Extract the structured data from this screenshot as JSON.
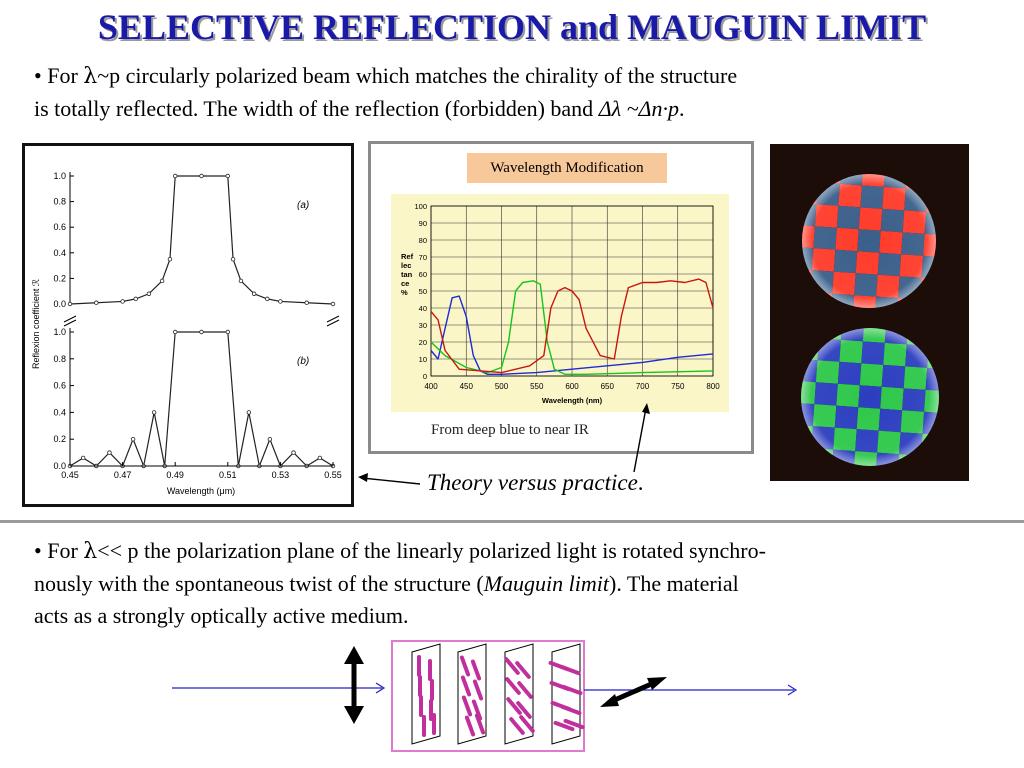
{
  "title": "SELECTIVE REFLECTION and MAUGUIN LIMIT",
  "bullet1": {
    "bullet": "•",
    "text_a": "For ",
    "lambda": "λ",
    "text_b": "~p circularly polarized beam which matches the chirality of the structure",
    "line2_a": "is totally reflected. The width of the reflection (forbidden) band ",
    "formula": "Δλ ~Δn·p",
    "line2_end": "."
  },
  "theory_plot": {
    "ylabel": "Reflexion coefficient ℛ",
    "xlabel": "Wavelength (μm)",
    "panel_a_label": "(a)",
    "panel_b_label": "(b)",
    "x_ticks": [
      "0.45",
      "0.47",
      "0.49",
      "0.51",
      "0.53",
      "0.55"
    ],
    "y_ticks_top": [
      "1.0",
      "0.8",
      "0.6",
      "0.4",
      "0.2",
      "0.0"
    ],
    "y_ticks_bottom": [
      "1.0",
      "0.8",
      "0.6",
      "0.4",
      "0.2",
      "0.0"
    ]
  },
  "practice_plot": {
    "banner": "Wavelength Modification",
    "ylabel_lines": [
      "Ref",
      "lec",
      "tan",
      "ce",
      "%"
    ],
    "xlabel": "Wavelength (nm)",
    "x_ticks": [
      "400",
      "450",
      "500",
      "550",
      "600",
      "650",
      "700",
      "750",
      "800"
    ],
    "y_ticks": [
      "100",
      "90",
      "80",
      "70",
      "60",
      "50",
      "40",
      "30",
      "20",
      "10",
      "0"
    ],
    "footer": "From deep blue to near IR"
  },
  "chart_data": [
    {
      "type": "line",
      "panel": "(a)",
      "xlabel": "Wavelength (μm)",
      "ylabel": "Reflexion coefficient ℛ",
      "xlim": [
        0.45,
        0.55
      ],
      "ylim": [
        0,
        1.0
      ],
      "x": [
        0.45,
        0.46,
        0.47,
        0.475,
        0.48,
        0.485,
        0.488,
        0.49,
        0.5,
        0.51,
        0.512,
        0.515,
        0.52,
        0.525,
        0.53,
        0.54,
        0.55
      ],
      "y": [
        0.0,
        0.01,
        0.02,
        0.04,
        0.08,
        0.18,
        0.35,
        1.0,
        1.0,
        1.0,
        0.35,
        0.18,
        0.08,
        0.04,
        0.02,
        0.01,
        0.0
      ]
    },
    {
      "type": "line",
      "panel": "(b)",
      "xlabel": "Wavelength (μm)",
      "ylabel": "Reflexion coefficient ℛ",
      "xlim": [
        0.45,
        0.55
      ],
      "ylim": [
        0,
        1.0
      ],
      "x": [
        0.45,
        0.455,
        0.46,
        0.465,
        0.47,
        0.474,
        0.478,
        0.482,
        0.486,
        0.49,
        0.5,
        0.51,
        0.514,
        0.518,
        0.522,
        0.526,
        0.53,
        0.535,
        0.54,
        0.545,
        0.55
      ],
      "y": [
        0.0,
        0.06,
        0.0,
        0.1,
        0.0,
        0.2,
        0.0,
        0.4,
        0.0,
        1.0,
        1.0,
        1.0,
        0.0,
        0.4,
        0.0,
        0.2,
        0.0,
        0.1,
        0.0,
        0.06,
        0.0
      ]
    },
    {
      "type": "line",
      "title": "Wavelength Modification",
      "xlabel": "Wavelength (nm)",
      "ylabel": "Ref lec tan ce %",
      "xlim": [
        400,
        800
      ],
      "ylim": [
        0,
        100
      ],
      "grid": true,
      "series": [
        {
          "color": "#1f2bd6",
          "x": [
            400,
            410,
            420,
            430,
            440,
            450,
            460,
            470,
            480,
            500,
            550,
            600,
            650,
            700,
            750,
            800
          ],
          "y": [
            15,
            10,
            28,
            46,
            47,
            35,
            12,
            3,
            1,
            1,
            2,
            4,
            6,
            8,
            11,
            13
          ]
        },
        {
          "color": "#16c41a",
          "x": [
            400,
            420,
            450,
            480,
            500,
            510,
            520,
            530,
            545,
            555,
            565,
            575,
            590,
            620,
            700,
            800
          ],
          "y": [
            20,
            12,
            5,
            2,
            5,
            20,
            50,
            55,
            56,
            54,
            20,
            4,
            1,
            1,
            2,
            3
          ]
        },
        {
          "color": "#c8160f",
          "x": [
            400,
            410,
            420,
            440,
            500,
            540,
            560,
            570,
            580,
            590,
            600,
            610,
            620,
            640,
            660,
            670,
            680,
            700,
            720,
            740,
            760,
            780,
            790,
            800
          ],
          "y": [
            38,
            33,
            15,
            4,
            2,
            6,
            12,
            40,
            50,
            52,
            50,
            45,
            28,
            12,
            10,
            35,
            52,
            55,
            55,
            56,
            55,
            57,
            55,
            40
          ]
        }
      ]
    }
  ],
  "caption": "Theory versus practice",
  "caption_end": ".",
  "bullet2": {
    "bullet": "•",
    "text_a": "For ",
    "lambda": "λ",
    "text_b": "<< p the polarization plane of the linearly polarized light is rotated synchro-",
    "line2_a": "nously with the spontaneous twist of the structure (",
    "line2_italic": "Mauguin limit",
    "line2_b": "). The material",
    "line3": "acts as a strongly optically active medium."
  },
  "colors": {
    "title": "#1a1aa8",
    "diagram_border": "#e07ad0",
    "molecule": "#c02f9c",
    "arrow_line": "#2222cc"
  }
}
